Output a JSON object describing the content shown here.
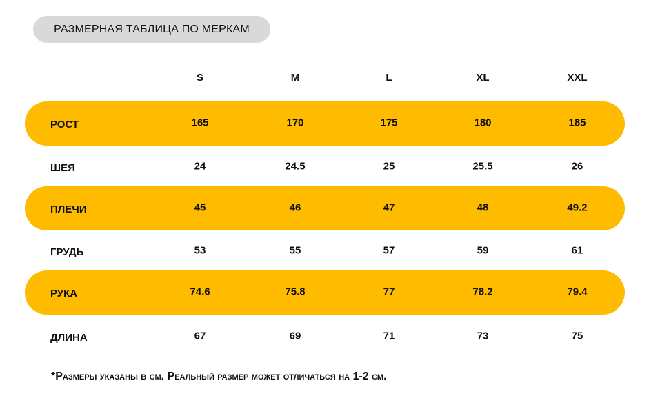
{
  "title": "РАЗМЕРНАЯ ТАБЛИЦА ПО МЕРКАМ",
  "accent_color": "#ffbb00",
  "columns": [
    "S",
    "M",
    "L",
    "XL",
    "XXL"
  ],
  "rows": [
    {
      "label": "РОСТ",
      "values": [
        "165",
        "170",
        "175",
        "180",
        "185"
      ],
      "highlight": true
    },
    {
      "label": "ШЕЯ",
      "values": [
        "24",
        "24.5",
        "25",
        "25.5",
        "26"
      ],
      "highlight": false
    },
    {
      "label": "ПЛЕЧИ",
      "values": [
        "45",
        "46",
        "47",
        "48",
        "49.2"
      ],
      "highlight": true
    },
    {
      "label": "ГРУДЬ",
      "values": [
        "53",
        "55",
        "57",
        "59",
        "61"
      ],
      "highlight": false
    },
    {
      "label": "РУКА",
      "values": [
        "74.6",
        "75.8",
        "77",
        "78.2",
        "79.4"
      ],
      "highlight": true
    },
    {
      "label": "ДЛИНА",
      "values": [
        "67",
        "69",
        "71",
        "73",
        "75"
      ],
      "highlight": false
    }
  ],
  "footnote": "*Размеры указаны в см. Реальный размер может отличаться на 1-2 см."
}
